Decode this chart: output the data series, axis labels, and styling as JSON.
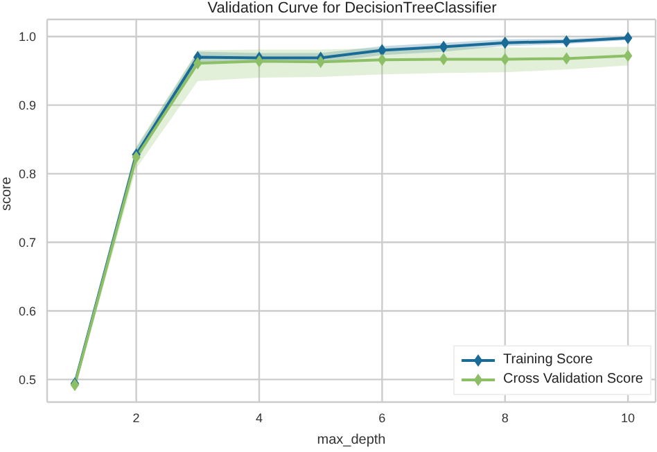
{
  "chart_data": {
    "type": "line",
    "title": "Validation Curve for DecisionTreeClassifier",
    "xlabel": "max_depth",
    "ylabel": "score",
    "x": [
      1,
      2,
      3,
      4,
      5,
      6,
      7,
      8,
      9,
      10
    ],
    "series": [
      {
        "name": "Training Score",
        "color": "#1a6b96",
        "values": [
          0.494,
          0.828,
          0.97,
          0.969,
          0.969,
          0.98,
          0.985,
          0.991,
          0.993,
          0.998
        ],
        "lower": [
          0.49,
          0.818,
          0.962,
          0.962,
          0.962,
          0.973,
          0.978,
          0.986,
          0.989,
          0.995
        ],
        "upper": [
          0.498,
          0.838,
          0.978,
          0.976,
          0.976,
          0.986,
          0.991,
          0.996,
          0.997,
          1.0
        ]
      },
      {
        "name": "Cross Validation Score",
        "color": "#8dbf67",
        "values": [
          0.492,
          0.824,
          0.961,
          0.964,
          0.963,
          0.966,
          0.967,
          0.967,
          0.968,
          0.972
        ],
        "lower": [
          0.486,
          0.808,
          0.935,
          0.94,
          0.941,
          0.945,
          0.947,
          0.948,
          0.952,
          0.958
        ],
        "upper": [
          0.498,
          0.84,
          0.98,
          0.981,
          0.981,
          0.983,
          0.984,
          0.984,
          0.984,
          0.985
        ]
      }
    ],
    "xlim": [
      0.55,
      10.45
    ],
    "ylim": [
      0.467,
      1.025
    ],
    "xticks": [
      2,
      4,
      6,
      8,
      10
    ],
    "yticks": [
      0.5,
      0.6,
      0.7,
      0.8,
      0.9,
      {
        "value": 1,
        "label": "1.0"
      }
    ],
    "grid": true,
    "legend": "bottom right",
    "marker": "diamond",
    "line_style": "solid"
  }
}
